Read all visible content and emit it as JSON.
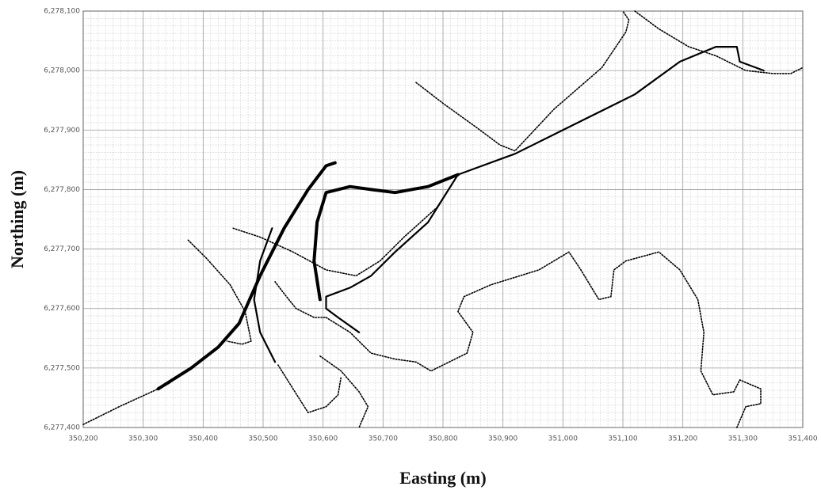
{
  "chart_data": {
    "type": "line",
    "x_label": "Easting (m)",
    "y_label": "Northing (m)",
    "grid": true,
    "xlim": [
      350200,
      351400
    ],
    "xticks": [
      {
        "value": 350200,
        "label": "350,200"
      },
      {
        "value": 350300,
        "label": "350,300"
      },
      {
        "value": 350400,
        "label": "350,400"
      },
      {
        "value": 350500,
        "label": "350,500"
      },
      {
        "value": 350600,
        "label": "350,600"
      },
      {
        "value": 350700,
        "label": "350,700"
      },
      {
        "value": 350800,
        "label": "350,800"
      },
      {
        "value": 350900,
        "label": "350,900"
      },
      {
        "value": 351000,
        "label": "351,000"
      },
      {
        "value": 351100,
        "label": "351,100"
      },
      {
        "value": 351200,
        "label": "351,200"
      },
      {
        "value": 351300,
        "label": "351,300"
      },
      {
        "value": 351400,
        "label": "351,400"
      }
    ],
    "ylim": [
      6277400,
      6278100
    ],
    "yticks": [
      {
        "value": 6277400,
        "label": "6,277,400"
      },
      {
        "value": 6277500,
        "label": "6,277,500"
      },
      {
        "value": 6277600,
        "label": "6,277,600"
      },
      {
        "value": 6277700,
        "label": "6,277,700"
      },
      {
        "value": 6277800,
        "label": "6,277,800"
      },
      {
        "value": 6277900,
        "label": "6,277,900"
      },
      {
        "value": 6278000,
        "label": "6,278,000"
      },
      {
        "value": 6278100,
        "label": "6,278,100"
      }
    ],
    "series": [
      {
        "color": "#000000",
        "style": "thick",
        "x": [
          350325,
          350380,
          350425,
          350460,
          350495,
          350535,
          350575,
          350605,
          350620
        ],
        "values": [
          6277465,
          6277500,
          6277535,
          6277575,
          6277655,
          6277735,
          6277800,
          6277840,
          6277845
        ]
      },
      {
        "color": "#000000",
        "style": "solid",
        "x": [
          350520,
          350495,
          350485,
          350495,
          350515
        ],
        "values": [
          6277510,
          6277560,
          6277615,
          6277680,
          6277735
        ]
      },
      {
        "color": "#000000",
        "style": "thick",
        "x": [
          350595,
          350585,
          350590,
          350605,
          350645,
          350680,
          350720,
          350775,
          350825
        ],
        "values": [
          6277615,
          6277680,
          6277745,
          6277795,
          6277805,
          6277800,
          6277795,
          6277805,
          6277825
        ]
      },
      {
        "color": "#000000",
        "style": "solid",
        "x": [
          350825,
          350920,
          351010,
          351120,
          351195,
          351255,
          351290,
          351295,
          351335
        ],
        "values": [
          6277825,
          6277860,
          6277905,
          6277960,
          6278015,
          6278040,
          6278040,
          6278015,
          6278000
        ]
      },
      {
        "color": "#000000",
        "style": "solid",
        "x": [
          350660,
          350625,
          350605,
          350605,
          350645,
          350680,
          350720,
          350775,
          350825
        ],
        "values": [
          6277560,
          6277585,
          6277600,
          6277620,
          6277635,
          6277655,
          6277695,
          6277745,
          6277825
        ]
      },
      {
        "color": "#000000",
        "style": "dotted",
        "x": [
          350200,
          350260,
          350325,
          350345
        ],
        "values": [
          6277405,
          6277435,
          6277465,
          6277475
        ]
      },
      {
        "color": "#000000",
        "style": "dotted",
        "x": [
          350375,
          350405,
          350445,
          350470,
          350480,
          350465,
          350440
        ],
        "values": [
          6277715,
          6277685,
          6277640,
          6277595,
          6277545,
          6277540,
          6277545
        ]
      },
      {
        "color": "#000000",
        "style": "dotted",
        "x": [
          350450,
          350495,
          350550,
          350605,
          350655,
          350695,
          350735,
          350790,
          350825
        ],
        "values": [
          6277735,
          6277720,
          6277695,
          6277665,
          6277655,
          6277680,
          6277720,
          6277770,
          6277825
        ]
      },
      {
        "color": "#000000",
        "style": "dotted",
        "x": [
          350520,
          350535,
          350555,
          350585,
          350605
        ],
        "values": [
          6277645,
          6277625,
          6277600,
          6277585,
          6277585
        ]
      },
      {
        "color": "#000000",
        "style": "dotted",
        "x": [
          350595,
          350630,
          350660,
          350675,
          350660
        ],
        "values": [
          6277520,
          6277495,
          6277460,
          6277435,
          6277400
        ]
      },
      {
        "color": "#000000",
        "style": "dotted",
        "x": [
          350525,
          350550,
          350575,
          350605,
          350625,
          350630
        ],
        "values": [
          6277505,
          6277465,
          6277425,
          6277435,
          6277455,
          6277485
        ]
      },
      {
        "color": "#000000",
        "style": "dotted",
        "x": [
          350605,
          350645,
          350680,
          350720,
          350755,
          350780,
          350800,
          350840,
          350850,
          350825,
          350835,
          350880,
          350960,
          351010,
          351030,
          351060,
          351080,
          351085,
          351105,
          351160,
          351195,
          351225,
          351235,
          351230,
          351250,
          351285,
          351295,
          351330,
          351330,
          351305,
          351290
        ],
        "values": [
          6277585,
          6277560,
          6277525,
          6277515,
          6277510,
          6277495,
          6277505,
          6277525,
          6277560,
          6277595,
          6277620,
          6277640,
          6277665,
          6277695,
          6277665,
          6277615,
          6277620,
          6277665,
          6277680,
          6277695,
          6277665,
          6277615,
          6277560,
          6277495,
          6277455,
          6277460,
          6277480,
          6277465,
          6277440,
          6277435,
          6277400
        ]
      },
      {
        "color": "#000000",
        "style": "dotted",
        "x": [
          350755,
          350800,
          350855,
          350895,
          350920,
          350985,
          351065,
          351105,
          351110,
          351100
        ],
        "values": [
          6277980,
          6277945,
          6277905,
          6277875,
          6277865,
          6277935,
          6278005,
          6278065,
          6278085,
          6278100
        ]
      },
      {
        "color": "#000000",
        "style": "dotted",
        "x": [
          351120,
          351160,
          351210,
          351255,
          351305,
          351350,
          351380,
          351400
        ],
        "values": [
          6278100,
          6278070,
          6278040,
          6278025,
          6278000,
          6277995,
          6277995,
          6278005
        ]
      }
    ]
  }
}
